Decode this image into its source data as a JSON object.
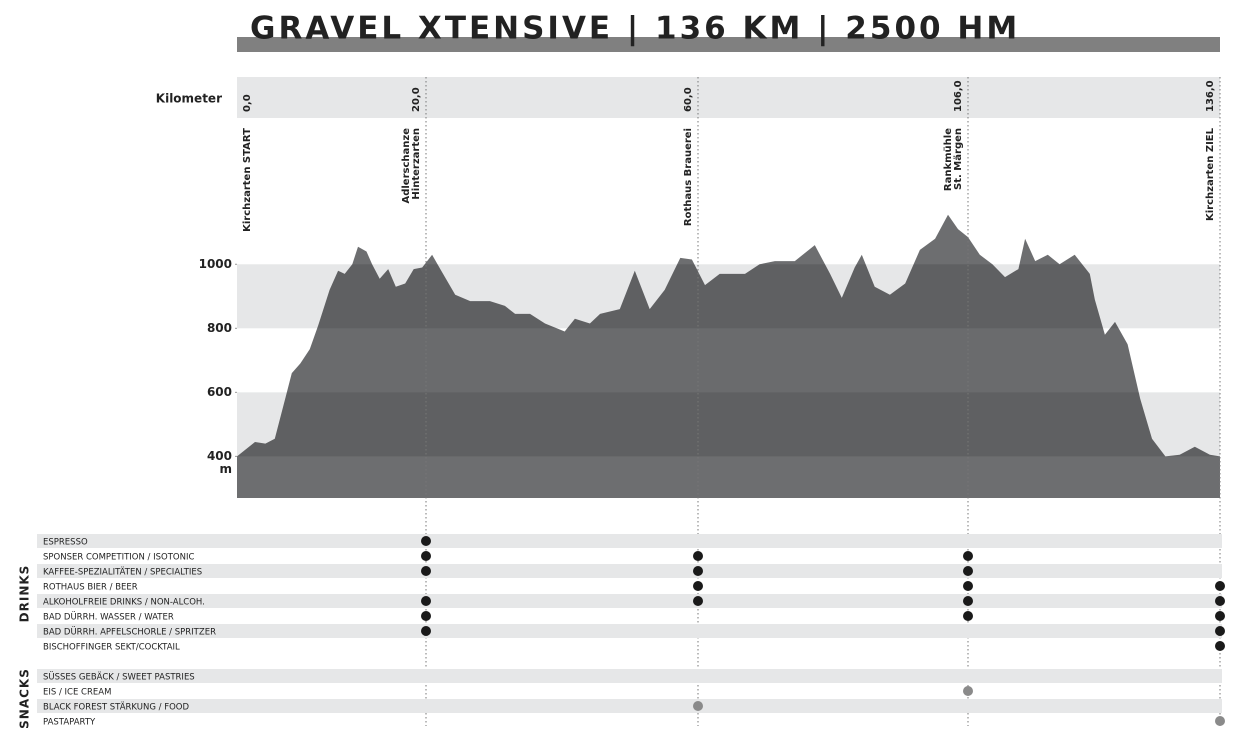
{
  "chart_data": {
    "type": "area",
    "title": "GRAVEL XTENSIVE | 136 KM | 2500 HM",
    "x_label": "Kilometer",
    "y_unit": "m",
    "color": "#6d6e70",
    "ylim": [
      270,
      1460
    ],
    "yticks": [
      400,
      600,
      800,
      1000
    ],
    "xticks": [
      {
        "value": 0,
        "label": "0,0"
      },
      {
        "value": 20,
        "label": "20,0"
      },
      {
        "value": 60,
        "label": "60,0"
      },
      {
        "value": 106,
        "label": "106,0"
      },
      {
        "value": 136,
        "label": "136,0"
      }
    ],
    "stations": [
      [
        "Kirchzarten START"
      ],
      [
        "Adlerschanze",
        "Hinterzarten"
      ],
      [
        "Rothaus Brauerei"
      ],
      [
        "Rankmühle",
        "St. Märgen"
      ],
      [
        "Kirchzarten ZIEL"
      ]
    ],
    "x": [
      0,
      1.9,
      3.0,
      4.0,
      5.1,
      5.8,
      6.7,
      7.7,
      8.6,
      9.8,
      10.7,
      11.4,
      12.2,
      12.8,
      13.7,
      14.3,
      15.1,
      16.0,
      16.8,
      17.8,
      18.7,
      19.6,
      20.9,
      22.1,
      24.3,
      26.5,
      29.4,
      31.6,
      33.1,
      35.3,
      37.5,
      40.4,
      41.9,
      44.1,
      45.6,
      48.5,
      50.7,
      52.9,
      55.1,
      57.4,
      59.1,
      61.2,
      63.7,
      68.0,
      70.5,
      73.1,
      76.5,
      79.9,
      82.5,
      84.5,
      86.7,
      87.9,
      90.1,
      92.7,
      95.3,
      97.8,
      100.4,
      102.6,
      104.3,
      106.0,
      107.4,
      108.9,
      110.4,
      112.0,
      112.8,
      114.0,
      115.5,
      116.9,
      118.7,
      120.5,
      121.1,
      122.3,
      123.5,
      125.0,
      126.5,
      127.9,
      129.5,
      131.2,
      133.0,
      134.8,
      136
    ],
    "values": [
      400,
      445,
      440,
      455,
      580,
      660,
      690,
      735,
      810,
      920,
      980,
      970,
      1000,
      1055,
      1040,
      1000,
      955,
      985,
      930,
      940,
      985,
      990,
      1030,
      985,
      905,
      885,
      885,
      870,
      845,
      845,
      815,
      790,
      830,
      815,
      845,
      860,
      980,
      860,
      920,
      1020,
      1015,
      935,
      970,
      970,
      1000,
      1010,
      1010,
      1060,
      970,
      895,
      990,
      1030,
      930,
      905,
      940,
      1045,
      1080,
      1155,
      1110,
      1085,
      1030,
      1000,
      960,
      985,
      1080,
      1010,
      1030,
      1000,
      1030,
      970,
      890,
      780,
      820,
      750,
      580,
      455,
      400,
      405,
      430,
      405,
      400
    ]
  },
  "table": {
    "groups": [
      {
        "name": "DRINKS",
        "color": "#1a1a1a",
        "rows": [
          {
            "label": "ESPRESSO",
            "at": [
              1
            ]
          },
          {
            "label": "SPONSER COMPETITION / ISOTONIC",
            "at": [
              1,
              2,
              3
            ]
          },
          {
            "label": "KAFFEE-SPEZIALITÄTEN / SPECIALTIES",
            "at": [
              1,
              2,
              3
            ]
          },
          {
            "label": "ROTHAUS BIER / BEER",
            "at": [
              2,
              3,
              4
            ]
          },
          {
            "label": "ALKOHOLFREIE DRINKS / NON-ALCOH.",
            "at": [
              1,
              2,
              3,
              4
            ]
          },
          {
            "label": "BAD DÜRRH. WASSER / WATER",
            "at": [
              1,
              3,
              4
            ]
          },
          {
            "label": "BAD DÜRRH. APFELSCHORLE / SPRITZER",
            "at": [
              1,
              4
            ]
          },
          {
            "label": "BISCHOFFINGER SEKT/COCKTAIL",
            "at": [
              4
            ]
          }
        ]
      },
      {
        "name": "SNACKS",
        "color": "#8a8a8a",
        "rows": [
          {
            "label": "SÜSSES GEBÄCK / SWEET PASTRIES",
            "at": []
          },
          {
            "label": "EIS / ICE CREAM",
            "at": [
              3
            ]
          },
          {
            "label": "BLACK FOREST STÄRKUNG / FOOD",
            "at": [
              2
            ]
          },
          {
            "label": "PASTAPARTY",
            "at": [
              4
            ]
          }
        ]
      }
    ]
  }
}
